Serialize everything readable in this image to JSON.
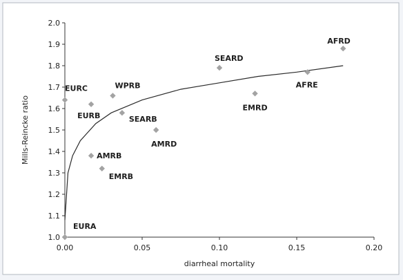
{
  "chart_data": {
    "type": "scatter",
    "title": "",
    "xlabel": "diarrheal mortality",
    "ylabel": "Mills-Reincke ratio",
    "xlim": [
      0.0,
      0.2
    ],
    "ylim": [
      1.0,
      2.0
    ],
    "x_ticks": [
      "0.00",
      "0.05",
      "0.10",
      "0.15",
      "0.20"
    ],
    "y_ticks": [
      "1.0",
      "1.1",
      "1.2",
      "1.3",
      "1.4",
      "1.5",
      "1.6",
      "1.7",
      "1.8",
      "1.9",
      "2.0"
    ],
    "grid": false,
    "points": [
      {
        "label": "EURA",
        "x": 0.0,
        "y": 1.0
      },
      {
        "label": "EURC",
        "x": 0.0,
        "y": 1.64
      },
      {
        "label": "EURB",
        "x": 0.017,
        "y": 1.62
      },
      {
        "label": "WPRB",
        "x": 0.031,
        "y": 1.66
      },
      {
        "label": "SEARB",
        "x": 0.037,
        "y": 1.58
      },
      {
        "label": "AMRB",
        "x": 0.017,
        "y": 1.38
      },
      {
        "label": "EMRB",
        "x": 0.024,
        "y": 1.32
      },
      {
        "label": "AMRD",
        "x": 0.059,
        "y": 1.5
      },
      {
        "label": "SEARD",
        "x": 0.1,
        "y": 1.79
      },
      {
        "label": "EMRD",
        "x": 0.123,
        "y": 1.67
      },
      {
        "label": "AFRE",
        "x": 0.157,
        "y": 1.77
      },
      {
        "label": "AFRD",
        "x": 0.18,
        "y": 1.88
      }
    ],
    "trend": {
      "type": "fit curve",
      "x": [
        0.0,
        0.002,
        0.005,
        0.01,
        0.02,
        0.03,
        0.05,
        0.075,
        0.1,
        0.125,
        0.15,
        0.18
      ],
      "y": [
        1.08,
        1.3,
        1.38,
        1.45,
        1.53,
        1.58,
        1.64,
        1.69,
        1.72,
        1.75,
        1.77,
        1.8
      ]
    }
  }
}
